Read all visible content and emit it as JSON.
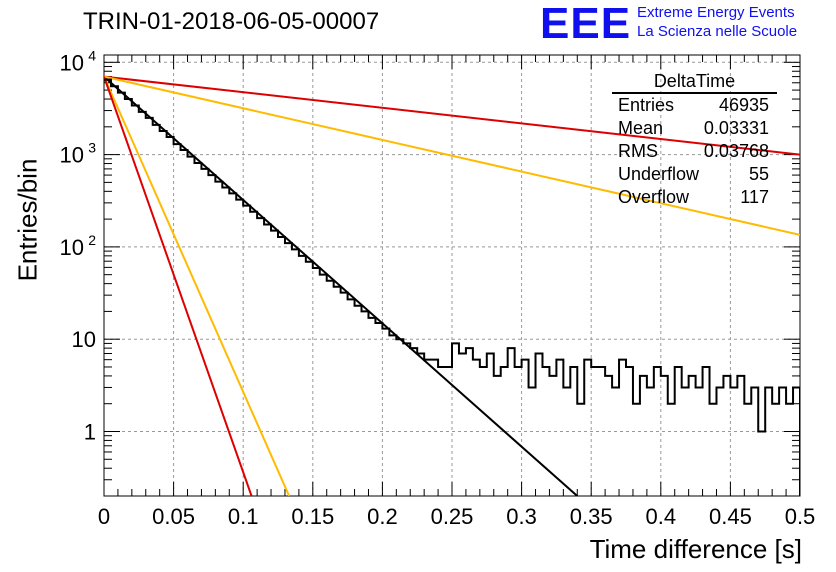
{
  "chart_data": {
    "type": "line",
    "title": "TRIN-01-2018-06-05-00007",
    "xlabel": "Time difference [s]",
    "ylabel": "Entries/bin",
    "xlim": [
      0,
      0.5
    ],
    "ylim": [
      0.2,
      12000
    ],
    "yscale": "log",
    "grid": true,
    "xticks": [
      "0",
      "0.05",
      "0.1",
      "0.15",
      "0.2",
      "0.25",
      "0.3",
      "0.35",
      "0.4",
      "0.45",
      "0.5"
    ],
    "yticks": [
      {
        "value": 1,
        "label": "1"
      },
      {
        "value": 10,
        "label": "10"
      },
      {
        "value": 100,
        "label": "10",
        "exp": "2"
      },
      {
        "value": 1000,
        "label": "10",
        "exp": "3"
      },
      {
        "value": 10000,
        "label": "10",
        "exp": "4"
      }
    ],
    "histogram": {
      "name": "DeltaTime",
      "bin_width": 0.005,
      "values": [
        6500,
        5500,
        4700,
        4000,
        3400,
        2900,
        2500,
        2100,
        1800,
        1550,
        1300,
        1120,
        950,
        810,
        700,
        600,
        510,
        440,
        380,
        325,
        280,
        240,
        205,
        175,
        150,
        128,
        110,
        94,
        80,
        69,
        59,
        50,
        43,
        37,
        32,
        27,
        23,
        20,
        17,
        15,
        13,
        11,
        10,
        9,
        8,
        7,
        6,
        6,
        5,
        5,
        9,
        7,
        8,
        6,
        5,
        7,
        4,
        5,
        8,
        5,
        6,
        3,
        7,
        5,
        4,
        6,
        3,
        5,
        2,
        6,
        5,
        5,
        4,
        3,
        6,
        5,
        2,
        4,
        3,
        5,
        4,
        2,
        5,
        3,
        4,
        3,
        5,
        2,
        3,
        4,
        3,
        4,
        2,
        3,
        1,
        3,
        2,
        3,
        2,
        3
      ]
    },
    "fit_lines": [
      {
        "color": "#000000",
        "y0": 7000,
        "x1": 0.34,
        "y1": 0.2
      },
      {
        "color": "#dd0000",
        "y0": 7000,
        "x1": 0.5,
        "y1": 1000
      },
      {
        "color": "#ffbb00",
        "y0": 7000,
        "x1": 0.5,
        "y1": 135
      },
      {
        "color": "#ffbb00",
        "y0": 7000,
        "x1": 0.133,
        "y1": 0.2
      },
      {
        "color": "#dd0000",
        "y0": 7000,
        "x1": 0.106,
        "y1": 0.2
      }
    ],
    "stats": {
      "title": "DeltaTime",
      "rows": [
        {
          "label": "Entries",
          "value": "46935"
        },
        {
          "label": "Mean",
          "value": "0.03331"
        },
        {
          "label": "RMS",
          "value": "0.03768"
        },
        {
          "label": "Underflow",
          "value": "55"
        },
        {
          "label": "Overflow",
          "value": "117"
        }
      ]
    }
  },
  "logo": {
    "mark": "EEE",
    "line1": "Extreme Energy Events",
    "line2": "La Scienza nelle Scuole"
  }
}
